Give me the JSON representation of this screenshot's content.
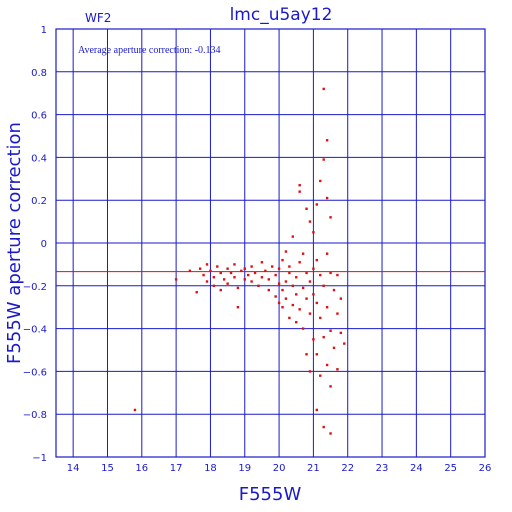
{
  "chart_data": {
    "type": "scatter",
    "title": "lmc_u5ay12",
    "panel_label": "WF2",
    "annotation": "Average aperture correction: -0.134",
    "xlabel": "F555W",
    "ylabel": "F555W aperture correction",
    "xlim": [
      13.5,
      26
    ],
    "ylim": [
      -1,
      1
    ],
    "x_ticks": [
      14,
      15,
      16,
      17,
      18,
      19,
      20,
      21,
      22,
      23,
      24,
      25,
      26
    ],
    "y_ticks": [
      -1,
      -0.8,
      -0.6,
      -0.4,
      -0.2,
      0,
      0.2,
      0.4,
      0.6,
      0.8,
      1
    ],
    "y_tick_labels": [
      "−1",
      "−0.8",
      "−0.6",
      "−0.4",
      "−0.2",
      "0",
      "0.2",
      "0.4",
      "0.6",
      "0.8",
      "1"
    ],
    "grid": true,
    "reference_line_y": -0.134,
    "colors": {
      "axes": "#1a1acc",
      "points": "#dd1111",
      "reference_line": "#dd1111"
    },
    "points": [
      [
        15.8,
        -0.78
      ],
      [
        17.0,
        -0.17
      ],
      [
        17.4,
        -0.13
      ],
      [
        17.6,
        -0.23
      ],
      [
        17.7,
        -0.12
      ],
      [
        17.8,
        -0.15
      ],
      [
        17.9,
        -0.18
      ],
      [
        17.9,
        -0.1
      ],
      [
        18.0,
        -0.13
      ],
      [
        18.1,
        -0.2
      ],
      [
        18.1,
        -0.16
      ],
      [
        18.2,
        -0.11
      ],
      [
        18.3,
        -0.14
      ],
      [
        18.3,
        -0.22
      ],
      [
        18.4,
        -0.17
      ],
      [
        18.5,
        -0.12
      ],
      [
        18.5,
        -0.19
      ],
      [
        18.6,
        -0.14
      ],
      [
        18.7,
        -0.1
      ],
      [
        18.7,
        -0.16
      ],
      [
        18.8,
        -0.21
      ],
      [
        18.8,
        -0.3
      ],
      [
        18.9,
        -0.13
      ],
      [
        19.0,
        -0.17
      ],
      [
        19.0,
        -0.12
      ],
      [
        19.1,
        -0.15
      ],
      [
        19.2,
        -0.18
      ],
      [
        19.2,
        -0.11
      ],
      [
        19.3,
        -0.14
      ],
      [
        19.4,
        -0.2
      ],
      [
        19.5,
        -0.16
      ],
      [
        19.5,
        -0.09
      ],
      [
        19.6,
        -0.13
      ],
      [
        19.7,
        -0.22
      ],
      [
        19.7,
        -0.17
      ],
      [
        19.8,
        -0.11
      ],
      [
        19.9,
        -0.15
      ],
      [
        19.9,
        -0.25
      ],
      [
        20.0,
        -0.19
      ],
      [
        20.0,
        -0.28
      ],
      [
        20.0,
        -0.12
      ],
      [
        20.1,
        -0.08
      ],
      [
        20.1,
        -0.22
      ],
      [
        20.1,
        -0.3
      ],
      [
        20.2,
        -0.04
      ],
      [
        20.2,
        -0.18
      ],
      [
        20.2,
        -0.26
      ],
      [
        20.3,
        -0.14
      ],
      [
        20.3,
        -0.35
      ],
      [
        20.3,
        -0.11
      ],
      [
        20.4,
        -0.2
      ],
      [
        20.4,
        -0.29
      ],
      [
        20.4,
        0.03
      ],
      [
        20.5,
        -0.24
      ],
      [
        20.5,
        -0.37
      ],
      [
        20.5,
        -0.16
      ],
      [
        20.6,
        0.27
      ],
      [
        20.6,
        0.24
      ],
      [
        20.6,
        -0.09
      ],
      [
        20.6,
        -0.31
      ],
      [
        20.7,
        -0.05
      ],
      [
        20.7,
        -0.21
      ],
      [
        20.7,
        -0.4
      ],
      [
        20.8,
        0.16
      ],
      [
        20.8,
        -0.14
      ],
      [
        20.8,
        -0.26
      ],
      [
        20.8,
        -0.52
      ],
      [
        20.9,
        0.1
      ],
      [
        20.9,
        -0.18
      ],
      [
        20.9,
        -0.33
      ],
      [
        20.9,
        -0.6
      ],
      [
        21.0,
        0.05
      ],
      [
        21.0,
        -0.12
      ],
      [
        21.0,
        -0.24
      ],
      [
        21.0,
        -0.45
      ],
      [
        21.1,
        0.18
      ],
      [
        21.1,
        -0.08
      ],
      [
        21.1,
        -0.28
      ],
      [
        21.1,
        -0.52
      ],
      [
        21.1,
        -0.78
      ],
      [
        21.2,
        0.29
      ],
      [
        21.2,
        -0.15
      ],
      [
        21.2,
        -0.35
      ],
      [
        21.2,
        -0.62
      ],
      [
        21.3,
        0.72
      ],
      [
        21.3,
        0.39
      ],
      [
        21.3,
        -0.2
      ],
      [
        21.3,
        -0.44
      ],
      [
        21.3,
        -0.86
      ],
      [
        21.4,
        0.48
      ],
      [
        21.4,
        0.21
      ],
      [
        21.4,
        -0.05
      ],
      [
        21.4,
        -0.3
      ],
      [
        21.4,
        -0.57
      ],
      [
        21.5,
        0.12
      ],
      [
        21.5,
        -0.14
      ],
      [
        21.5,
        -0.41
      ],
      [
        21.5,
        -0.67
      ],
      [
        21.5,
        -0.89
      ],
      [
        21.6,
        -0.22
      ],
      [
        21.6,
        -0.49
      ],
      [
        21.7,
        -0.15
      ],
      [
        21.7,
        -0.33
      ],
      [
        21.7,
        -0.59
      ],
      [
        21.8,
        -0.26
      ],
      [
        21.8,
        -0.42
      ],
      [
        21.9,
        -0.47
      ]
    ]
  }
}
